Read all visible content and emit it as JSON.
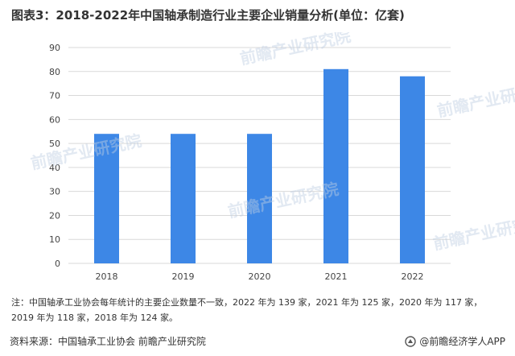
{
  "title": "图表3：2018-2022年中国轴承制造行业主要企业销量分析(单位：亿套)",
  "chart_data": {
    "type": "bar",
    "categories": [
      "2018",
      "2019",
      "2020",
      "2021",
      "2022"
    ],
    "values": [
      54,
      54,
      54,
      81,
      78
    ],
    "ylim": [
      0,
      90
    ],
    "yticks": [
      0,
      10,
      20,
      30,
      40,
      50,
      60,
      70,
      80,
      90
    ],
    "grid": true,
    "bar_color": "#3d87e6",
    "grid_color": "#d9d9d9"
  },
  "note": "注：中国轴承工业协会每年统计的主要企业数量不一致，2022 年为 139 家，2021 年为 125 家，2020 年为 117 家，2019 年为 118 家，2018 年为 124 家。",
  "source": "资料来源：中国轴承工业协会 前瞻产业研究院",
  "brand": "@前瞻经济学人APP",
  "watermark": "前瞻产业研究院"
}
